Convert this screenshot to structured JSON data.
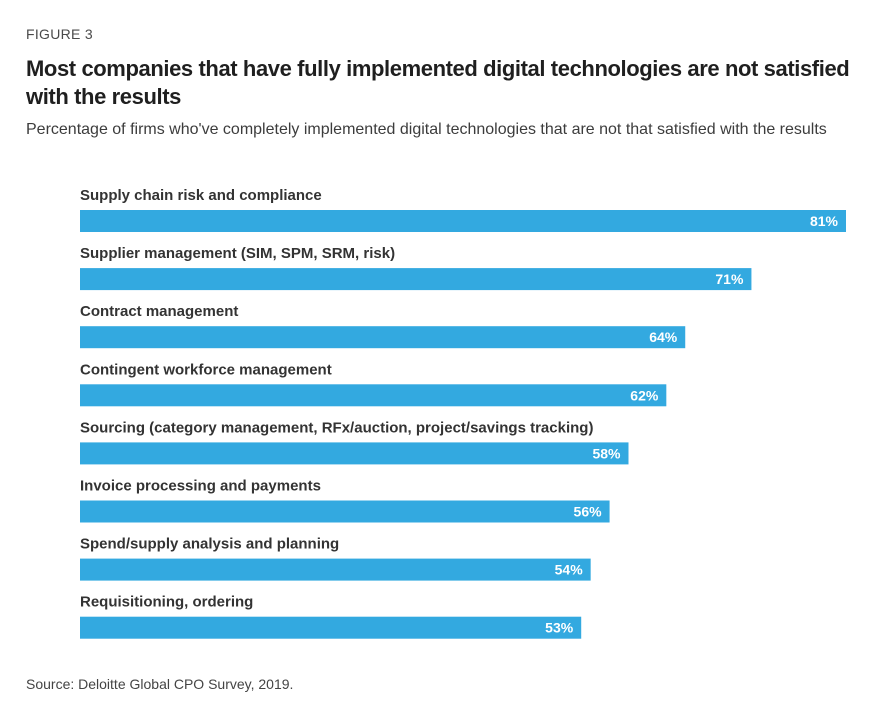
{
  "figure_label": "FIGURE 3",
  "title": "Most companies that have fully implemented digital technologies are not satisfied with the results",
  "subtitle": "Percentage of firms who've completely implemented digital technologies that are not that satisfied with the results",
  "source": "Source: Deloitte Global CPO Survey, 2019.",
  "colors": {
    "bar": "#33a9e0",
    "bar_label": "#ffffff"
  },
  "chart_data": {
    "type": "bar",
    "orientation": "horizontal",
    "categories": [
      "Supply chain risk and compliance",
      "Supplier management (SIM, SPM, SRM, risk)",
      "Contract management",
      "Contingent workforce management",
      "Sourcing (category management, RFx/auction, project/savings tracking)",
      "Invoice processing and payments",
      "Spend/supply analysis and planning",
      "Requisitioning, ordering"
    ],
    "values": [
      81,
      71,
      64,
      62,
      58,
      56,
      54,
      53
    ],
    "value_labels": [
      "81%",
      "71%",
      "64%",
      "62%",
      "58%",
      "56%",
      "54%",
      "53%"
    ],
    "grid": false,
    "legend": "none"
  }
}
